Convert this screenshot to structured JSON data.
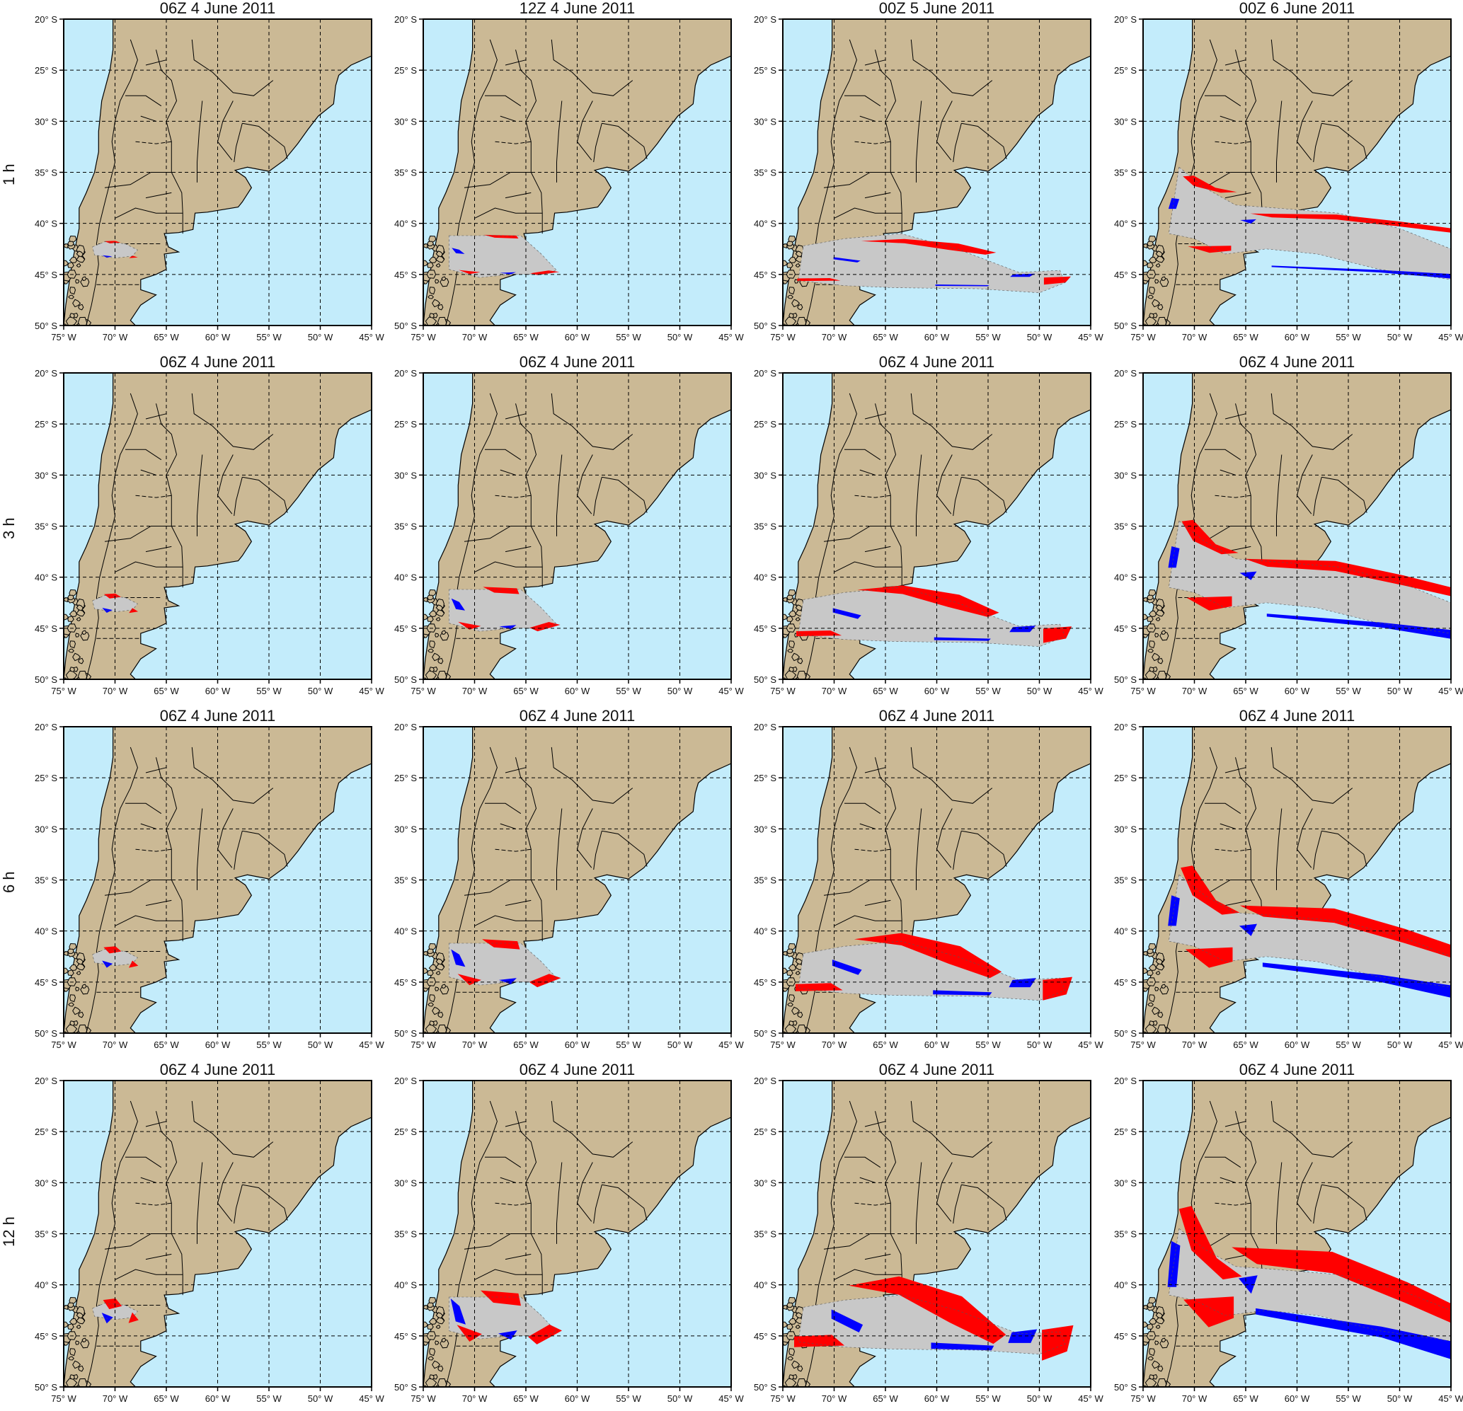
{
  "figure": {
    "row_labels": [
      "1 h",
      "3 h",
      "6 h",
      "12 h"
    ],
    "panel_titles": [
      [
        "06Z 4 June 2011",
        "12Z 4 June 2011",
        "00Z 5 June 2011",
        "00Z 6 June 2011"
      ],
      [
        "06Z 4 June 2011",
        "06Z 4 June 2011",
        "06Z 4 June 2011",
        "06Z 4 June 2011"
      ],
      [
        "06Z 4 June 2011",
        "06Z 4 June 2011",
        "06Z 4 June 2011",
        "06Z 4 June 2011"
      ],
      [
        "06Z 4 June 2011",
        "06Z 4 June 2011",
        "06Z 4 June 2011",
        "06Z 4 June 2011"
      ]
    ],
    "lat_labels": [
      "20° S",
      "25° S",
      "30° S",
      "35° S",
      "40° S",
      "45° S",
      "50° S"
    ],
    "lon_labels": [
      "75° W",
      "70° W",
      "65° W",
      "60° W",
      "55° W",
      "50° W",
      "45° W"
    ]
  },
  "colors": {
    "ocean": "#c3ecfb",
    "land": "#cbb995",
    "ash_plume": "#c8c8c8",
    "red_category": "#ff0000",
    "blue_category": "#0000ff",
    "border": "#000000"
  },
  "map_extent": {
    "lon_range": [
      -75,
      -45
    ],
    "lat_range": [
      -50,
      -20
    ]
  }
}
